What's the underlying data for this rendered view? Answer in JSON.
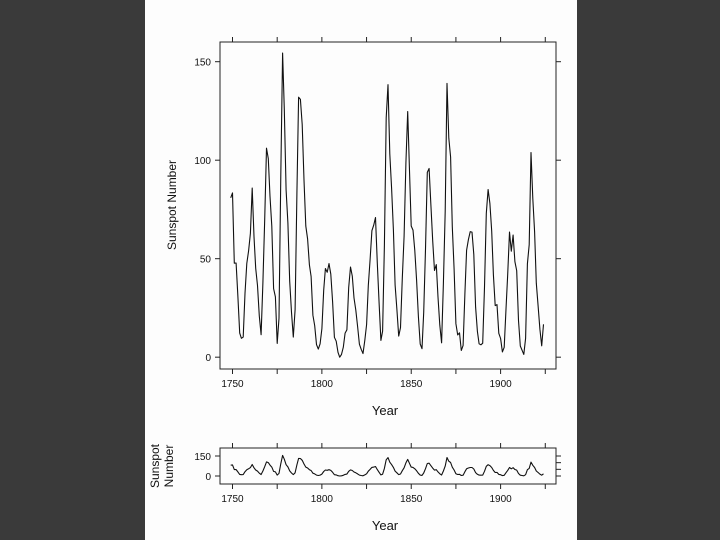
{
  "chart_data": [
    {
      "type": "line",
      "panel": "main",
      "xlabel": "Year",
      "ylabel": "Sunspot Number",
      "xlim": [
        1743,
        1931
      ],
      "ylim": [
        -6,
        160
      ],
      "xticks": [
        1750,
        1800,
        1850,
        1900
      ],
      "yticks": [
        0,
        50,
        100,
        150
      ],
      "grid": false,
      "x_start": 1749,
      "values": [
        80.9,
        83.4,
        47.7,
        47.8,
        30.7,
        12.2,
        9.6,
        10.2,
        32.4,
        47.6,
        54.0,
        62.9,
        85.9,
        61.2,
        45.1,
        36.4,
        20.9,
        11.4,
        37.8,
        69.8,
        106.1,
        100.8,
        81.6,
        66.5,
        34.8,
        30.6,
        7.0,
        19.8,
        92.5,
        154.4,
        125.9,
        84.8,
        68.1,
        38.5,
        22.8,
        10.2,
        24.1,
        82.9,
        132.0,
        130.9,
        118.1,
        89.9,
        66.6,
        60.0,
        46.9,
        41.0,
        21.3,
        16.0,
        6.4,
        4.1,
        6.8,
        14.5,
        34.0,
        45.0,
        43.1,
        47.5,
        42.2,
        28.1,
        10.1,
        8.1,
        2.5,
        0.0,
        1.4,
        5.0,
        12.2,
        13.9,
        35.4,
        45.8,
        41.1,
        30.1,
        23.9,
        15.6,
        6.6,
        4.0,
        1.8,
        8.5,
        16.6,
        36.3,
        49.6,
        64.2,
        67.0,
        70.9,
        47.8,
        27.5,
        8.5,
        13.2,
        56.9,
        121.5,
        138.3,
        103.2,
        85.7,
        64.6,
        36.7,
        24.2,
        10.7,
        15.0,
        40.1,
        61.5,
        98.5,
        124.7,
        96.3,
        66.6,
        64.5,
        54.1,
        39.0,
        20.6,
        6.7,
        4.3,
        22.7,
        54.8,
        93.8,
        95.8,
        77.2,
        59.1,
        44.0,
        47.0,
        30.5,
        16.3,
        7.3,
        37.6,
        74.0,
        139.0,
        111.2,
        101.6,
        66.2,
        44.7,
        17.0,
        11.3,
        12.4,
        3.4,
        6.0,
        32.3,
        54.3,
        59.7,
        63.7,
        63.5,
        52.2,
        25.4,
        13.1,
        6.8,
        6.3,
        7.1,
        35.6,
        73.0,
        85.1,
        78.0,
        64.0,
        41.8,
        26.2,
        26.7,
        12.1,
        9.5,
        2.7,
        5.0,
        24.4,
        42.0,
        63.5,
        53.8,
        62.0,
        48.5,
        43.9,
        18.6,
        5.7,
        3.6,
        1.4,
        9.6,
        47.4,
        57.1,
        103.9,
        80.6,
        63.6,
        37.6,
        26.1,
        14.2,
        5.8,
        16.7
      ]
    },
    {
      "type": "line",
      "panel": "banked",
      "xlabel": "Year",
      "ylabel": [
        "Sunspot",
        "Number"
      ],
      "xlim": [
        1743,
        1931
      ],
      "ylim": [
        -60,
        210
      ],
      "xticks": [
        1750,
        1800,
        1850,
        1900
      ],
      "yticks": [
        0,
        150
      ],
      "grid": false,
      "same_series_as": "main"
    }
  ]
}
